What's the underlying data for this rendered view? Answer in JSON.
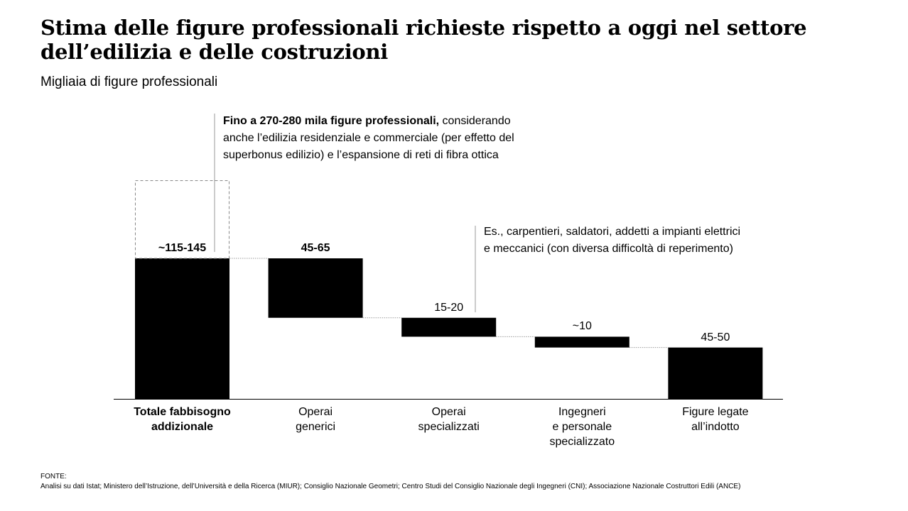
{
  "title": "Stima delle figure professionali richieste rispetto a oggi nel settore dell’edilizia e delle costruzioni",
  "subtitle": "Migliaia di figure professionali",
  "chart_data": {
    "type": "waterfall",
    "unit": "Migliaia di figure professionali",
    "categories": [
      "Totale fabbisogno addizionale",
      "Operai generici",
      "Operai specializzati",
      "Ingegneri e personale specializzato",
      "Figure legate all’indotto"
    ],
    "category_lines": [
      [
        "Totale fabbisogno",
        "addizionale"
      ],
      [
        "Operai",
        "generici"
      ],
      [
        "Operai",
        "specializzati"
      ],
      [
        "Ingegneri",
        "e personale",
        "specializzato"
      ],
      [
        "Figure legate",
        "all’indotto"
      ]
    ],
    "labels": [
      "~115-145",
      "45-65",
      "15-20",
      "~10",
      "45-50"
    ],
    "values": [
      130,
      55,
      17.5,
      10,
      47.5
    ],
    "kinds": [
      "total",
      "component",
      "component",
      "component",
      "component"
    ],
    "bold_labels": [
      true,
      true,
      false,
      false,
      false
    ],
    "bar_color": "#000000",
    "connector_color": "#999999",
    "extension_note": {
      "bold": "Fino a 270-280 mila figure professionali,",
      "rest_line1": " considerando",
      "line2": "anche l’edilizia residenziale e commerciale (per effetto del",
      "line3": "superbonus edilizio) e l’espansione di reti di fibra ottica"
    },
    "specialist_note": {
      "line1": "Es., carpentieri, saldatori, addetti a impianti elettrici",
      "line2": "e meccanici (con diversa difficoltà di reperimento)"
    }
  },
  "source": {
    "heading": "FONTE:",
    "text": "Analisi su dati Istat; Ministero dell’Istruzione, dell’Università e della Ricerca (MIUR); Consiglio Nazionale Geometri; Centro Studi del Consiglio Nazionale degli Ingegneri (CNI); Associazione Nazionale Costruttori Edili (ANCE)"
  }
}
